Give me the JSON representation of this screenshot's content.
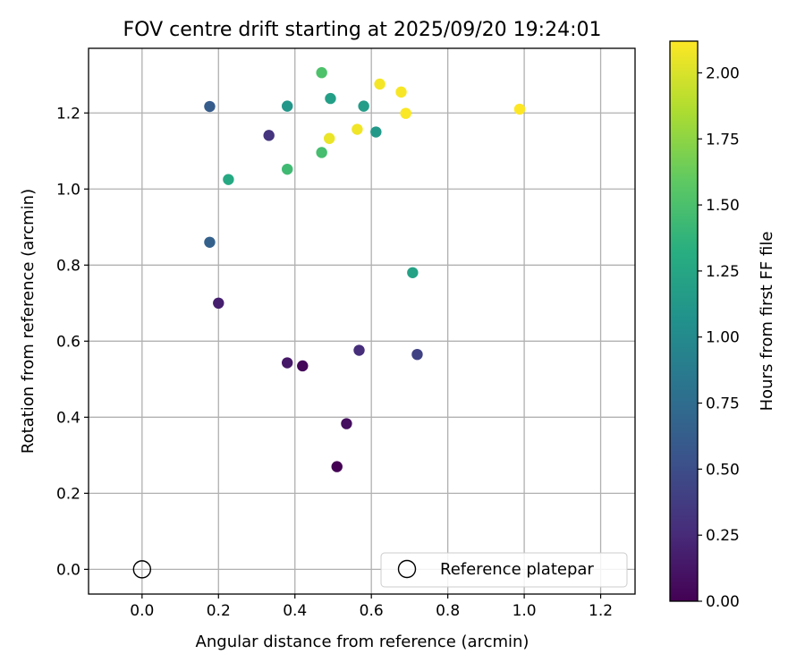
{
  "chart_data": {
    "type": "scatter",
    "title": "FOV centre drift starting at 2025/09/20 19:24:01",
    "xlabel": "Angular distance from reference (arcmin)",
    "ylabel": "Rotation from reference (arcmin)",
    "xlim": [
      -0.14,
      1.29
    ],
    "ylim": [
      -0.065,
      1.37
    ],
    "xticks": [
      0.0,
      0.2,
      0.4,
      0.6,
      0.8,
      1.0,
      1.2
    ],
    "xtick_labels": [
      "0.0",
      "0.2",
      "0.4",
      "0.6",
      "0.8",
      "1.0",
      "1.2"
    ],
    "yticks": [
      0.0,
      0.2,
      0.4,
      0.6,
      0.8,
      1.0,
      1.2
    ],
    "ytick_labels": [
      "0.0",
      "0.2",
      "0.4",
      "0.6",
      "0.8",
      "1.0",
      "1.2"
    ],
    "grid": true,
    "colorbar": {
      "label": "Hours from first FF file",
      "colormap": "viridis",
      "range": [
        0.0,
        2.12
      ],
      "ticks": [
        0.0,
        0.25,
        0.5,
        0.75,
        1.0,
        1.25,
        1.5,
        1.75,
        2.0
      ],
      "tick_labels": [
        "0.00",
        "0.25",
        "0.50",
        "0.75",
        "1.00",
        "1.25",
        "1.50",
        "1.75",
        "2.00"
      ]
    },
    "reference": {
      "x": 0.0,
      "y": 0.0,
      "label": "Reference platepar",
      "marker": "open-circle",
      "color": "#000000"
    },
    "legend": {
      "location": "lower-right",
      "entries": [
        "Reference platepar"
      ]
    },
    "points": [
      {
        "x": 0.51,
        "y": 0.27,
        "hours": 0.0
      },
      {
        "x": 0.42,
        "y": 0.535,
        "hours": 0.04
      },
      {
        "x": 0.535,
        "y": 0.383,
        "hours": 0.08
      },
      {
        "x": 0.38,
        "y": 0.543,
        "hours": 0.14
      },
      {
        "x": 0.2,
        "y": 0.7,
        "hours": 0.18
      },
      {
        "x": 0.568,
        "y": 0.576,
        "hours": 0.28
      },
      {
        "x": 0.332,
        "y": 1.141,
        "hours": 0.32
      },
      {
        "x": 0.72,
        "y": 0.565,
        "hours": 0.42
      },
      {
        "x": 0.177,
        "y": 1.217,
        "hours": 0.62
      },
      {
        "x": 0.177,
        "y": 0.86,
        "hours": 0.66
      },
      {
        "x": 0.38,
        "y": 1.218,
        "hours": 1.12
      },
      {
        "x": 0.612,
        "y": 1.15,
        "hours": 1.14
      },
      {
        "x": 0.58,
        "y": 1.218,
        "hours": 1.17
      },
      {
        "x": 0.493,
        "y": 1.238,
        "hours": 1.2
      },
      {
        "x": 0.708,
        "y": 0.78,
        "hours": 1.22
      },
      {
        "x": 0.226,
        "y": 1.025,
        "hours": 1.29
      },
      {
        "x": 0.38,
        "y": 1.052,
        "hours": 1.45
      },
      {
        "x": 0.47,
        "y": 1.096,
        "hours": 1.48
      },
      {
        "x": 0.47,
        "y": 1.306,
        "hours": 1.52
      },
      {
        "x": 0.49,
        "y": 1.133,
        "hours": 2.06
      },
      {
        "x": 0.563,
        "y": 1.157,
        "hours": 2.08
      },
      {
        "x": 0.622,
        "y": 1.276,
        "hours": 2.09
      },
      {
        "x": 0.678,
        "y": 1.255,
        "hours": 2.1
      },
      {
        "x": 0.69,
        "y": 1.199,
        "hours": 2.11
      },
      {
        "x": 0.988,
        "y": 1.21,
        "hours": 2.12
      }
    ]
  }
}
